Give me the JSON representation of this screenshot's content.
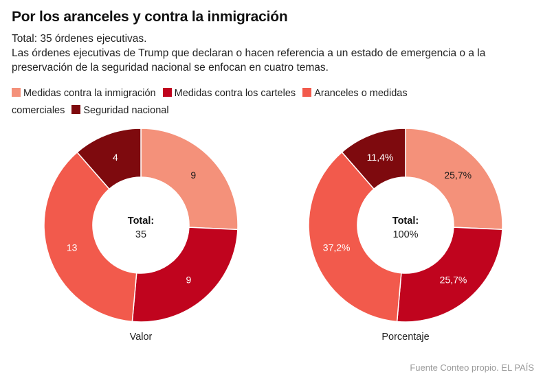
{
  "header": {
    "title": "Por los aranceles y contra la inmigración",
    "subtitle_line1": "Total: 35 órdenes ejecutivas.",
    "subtitle_line2": "Las órdenes ejecutivas de Trump que declaran o hacen referencia a un estado de emergencia o a la preservación de la seguridad nacional se enfocan en cuatro temas."
  },
  "legend": [
    {
      "label": "Medidas contra la inmigración",
      "color": "#f4917a"
    },
    {
      "label": "Medidas contra los carteles",
      "color": "#c0041e"
    },
    {
      "label": "Aranceles o medidas comerciales",
      "color": "#f25a4c"
    },
    {
      "label": "Seguridad nacional",
      "color": "#7e0a0e"
    }
  ],
  "chart_data": [
    {
      "type": "pie",
      "donut": true,
      "caption": "Valor",
      "center_label": "Total:",
      "center_value": "35",
      "categories": [
        "Medidas contra la inmigración",
        "Medidas contra los carteles",
        "Aranceles o medidas comerciales",
        "Seguridad nacional"
      ],
      "values": [
        9,
        9,
        13,
        4
      ],
      "data_labels": [
        "9",
        "9",
        "13",
        "4"
      ],
      "colors": [
        "#f4917a",
        "#c0041e",
        "#f25a4c",
        "#7e0a0e"
      ]
    },
    {
      "type": "pie",
      "donut": true,
      "caption": "Porcentaje",
      "center_label": "Total:",
      "center_value": "100%",
      "categories": [
        "Medidas contra la inmigración",
        "Medidas contra los carteles",
        "Aranceles o medidas comerciales",
        "Seguridad nacional"
      ],
      "values": [
        25.7,
        25.7,
        37.2,
        11.4
      ],
      "data_labels": [
        "25,7%",
        "25,7%",
        "37,2%",
        "11,4%"
      ],
      "colors": [
        "#f4917a",
        "#c0041e",
        "#f25a4c",
        "#7e0a0e"
      ]
    }
  ],
  "footer": {
    "source": "Fuente Conteo propio. EL PAÍS"
  }
}
